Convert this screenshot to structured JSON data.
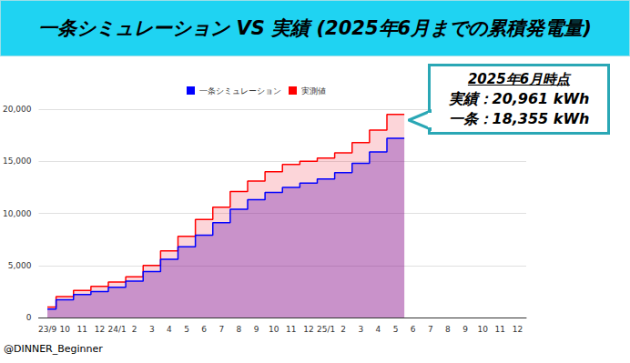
{
  "chart_data": {
    "type": "area",
    "line_style": "step",
    "title": "一条シミュレーション VS 実績 (2025年6月までの累積発電量)",
    "callout": {
      "heading": "2025年6月時点",
      "lines": [
        "実績：20,961 kWh",
        "一条：18,355 kWh"
      ]
    },
    "credit": "@DINNER_Beginner",
    "categories": [
      "23/9",
      "10",
      "11",
      "12",
      "24/1",
      "2",
      "3",
      "4",
      "5",
      "6",
      "7",
      "8",
      "9",
      "10",
      "11",
      "12",
      "25/1",
      "2",
      "3",
      "4",
      "5",
      "6",
      "7",
      "8",
      "9",
      "10",
      "11",
      "12"
    ],
    "series": [
      {
        "name": "一条シミュレーション",
        "color": "#0000ff",
        "values": [
          800,
          1700,
          2200,
          2500,
          2900,
          3500,
          4400,
          5600,
          6800,
          7900,
          9100,
          10400,
          11300,
          12000,
          12500,
          12900,
          13300,
          13900,
          14800,
          15900,
          17200,
          null,
          null,
          null,
          null,
          null,
          null,
          null
        ]
      },
      {
        "name": "実測値",
        "color": "#ff0000",
        "values": [
          1000,
          2000,
          2600,
          3000,
          3400,
          3900,
          5000,
          6400,
          7800,
          9400,
          10600,
          12100,
          13100,
          14000,
          14700,
          15000,
          15300,
          15800,
          16800,
          18000,
          19500,
          null,
          null,
          null,
          null,
          null,
          null,
          null
        ]
      }
    ],
    "ylim": [
      0,
      20000
    ],
    "yticks": [
      0,
      5000,
      10000,
      15000,
      20000
    ],
    "grid": true,
    "legend": "top"
  }
}
